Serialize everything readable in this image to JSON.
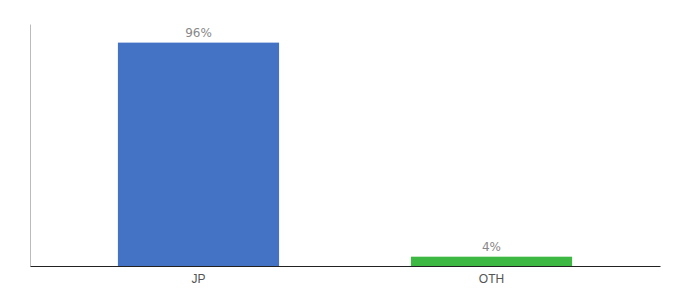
{
  "chart_data": {
    "type": "bar",
    "categories": [
      "JP",
      "OTH"
    ],
    "values": [
      96,
      4
    ],
    "value_labels": [
      "96%",
      "4%"
    ],
    "colors": [
      "#4472c4",
      "#3cb843"
    ],
    "ylim": [
      0,
      104
    ],
    "data_labels": true,
    "tick_labels": "x"
  }
}
